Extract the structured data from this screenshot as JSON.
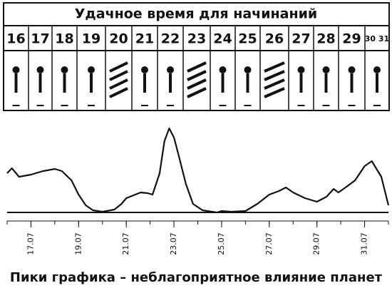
{
  "header": {
    "title": "Удачное время для начинаний",
    "days": [
      "16",
      "17",
      "18",
      "19",
      "20",
      "21",
      "22",
      "23",
      "24",
      "25",
      "26",
      "27",
      "28",
      "29",
      "30 31"
    ]
  },
  "chart_data": {
    "type": "line",
    "caption": "Пики графика – неблагоприятное влияние планет",
    "x": [
      16.0,
      16.2,
      16.5,
      17.0,
      17.5,
      18.0,
      18.3,
      18.7,
      19.0,
      19.3,
      19.6,
      20.0,
      20.5,
      20.8,
      21.0,
      21.3,
      21.6,
      21.9,
      22.1,
      22.4,
      22.6,
      22.8,
      23.0,
      23.2,
      23.5,
      23.8,
      24.2,
      24.8,
      25.0,
      25.4,
      26.0,
      26.5,
      27.0,
      27.4,
      27.7,
      28.0,
      28.5,
      29.0,
      29.4,
      29.7,
      29.9,
      30.2,
      30.6,
      31.0,
      31.3,
      31.7,
      32.0
    ],
    "values": [
      55,
      62,
      50,
      53,
      58,
      61,
      58,
      45,
      25,
      10,
      3,
      1,
      4,
      12,
      20,
      24,
      28,
      27,
      25,
      55,
      100,
      118,
      105,
      80,
      40,
      12,
      3,
      0,
      2,
      1,
      2,
      12,
      25,
      30,
      35,
      28,
      20,
      15,
      22,
      33,
      28,
      35,
      45,
      65,
      72,
      50,
      10
    ],
    "color": "#111111",
    "xlim": [
      16,
      32
    ],
    "ylim": [
      0,
      130
    ],
    "xticks": [
      {
        "value": 17,
        "label": "17.07"
      },
      {
        "value": 19,
        "label": "19.07"
      },
      {
        "value": 21,
        "label": "21.07"
      },
      {
        "value": 23,
        "label": "23.07"
      },
      {
        "value": 25,
        "label": "25.07"
      },
      {
        "value": 27,
        "label": "27.07"
      },
      {
        "value": 29,
        "label": "29.07"
      },
      {
        "value": 31,
        "label": "31.07"
      }
    ],
    "xminorticks": [
      16,
      17,
      18,
      19,
      20,
      21,
      22,
      23,
      24,
      25,
      26,
      27,
      28,
      29,
      30,
      31,
      32
    ]
  }
}
